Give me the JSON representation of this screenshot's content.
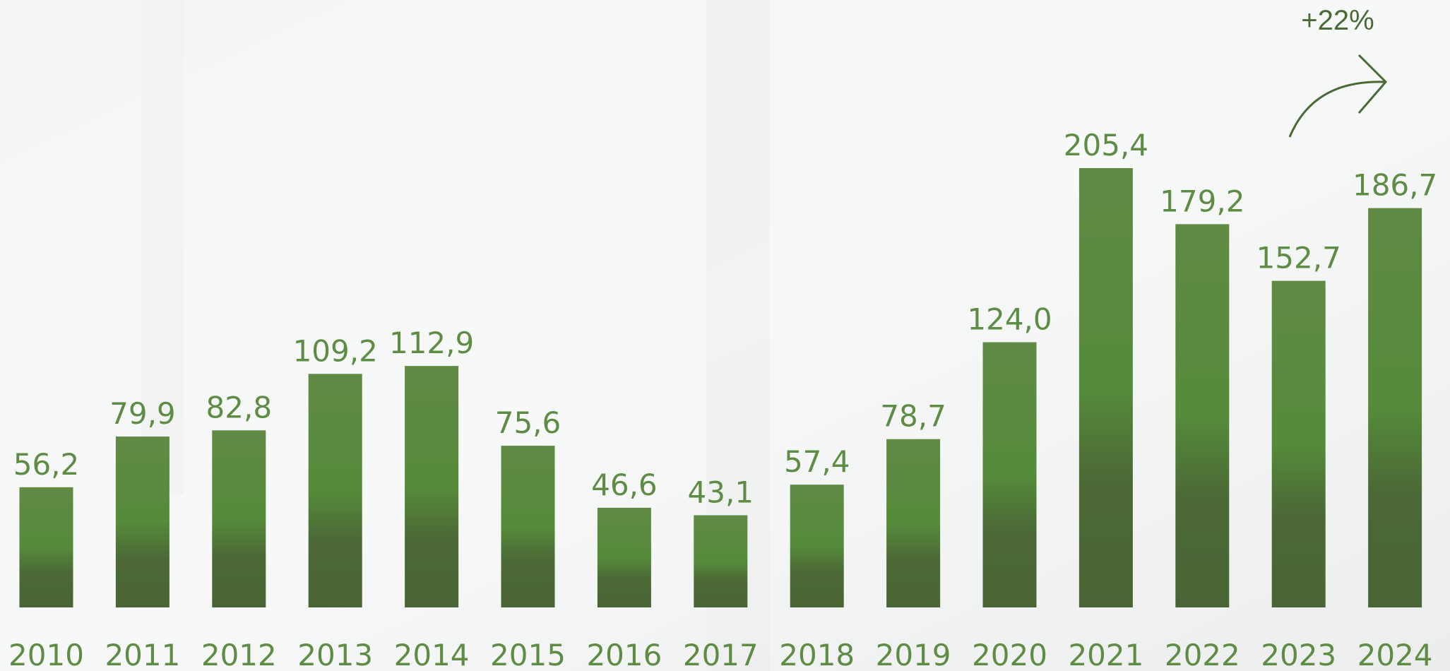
{
  "chart_data": {
    "type": "bar",
    "categories": [
      "2010",
      "2011",
      "2012",
      "2013",
      "2014",
      "2015",
      "2016",
      "2017",
      "2018",
      "2019",
      "2020",
      "2021",
      "2022",
      "2023",
      "2024"
    ],
    "values": [
      56.2,
      79.9,
      82.8,
      109.2,
      112.9,
      75.6,
      46.6,
      43.1,
      57.4,
      78.7,
      124.0,
      205.4,
      179.2,
      152.7,
      186.7
    ],
    "value_labels": [
      "56,2",
      "79,9",
      "82,8",
      "109,2",
      "112,9",
      "75,6",
      "46,6",
      "43,1",
      "57,4",
      "78,7",
      "124,0",
      "205,4",
      "179,2",
      "152,7",
      "186,7"
    ],
    "color": "#558b3a",
    "ylim": [
      0,
      284
    ],
    "annotation": "+22%"
  }
}
